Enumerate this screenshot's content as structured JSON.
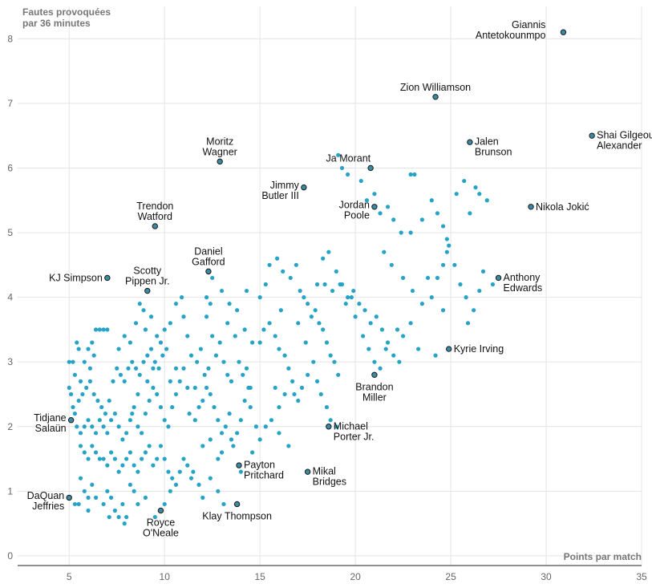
{
  "chart_data": {
    "type": "scatter",
    "ylabel_lines": [
      "Fautes provoquées",
      "par 36 minutes"
    ],
    "xlabel": "Points par match",
    "xlim": [
      2.3,
      35
    ],
    "ylim": [
      -0.15,
      8.5
    ],
    "xticks": [
      "5",
      "10",
      "15",
      "20",
      "25",
      "30",
      "35"
    ],
    "yticks": [
      "0",
      "1",
      "2",
      "3",
      "4",
      "5",
      "6",
      "7",
      "8"
    ],
    "colors": {
      "point": "#26a3c7",
      "highlight": "#3a8aa0",
      "grid": "#e4e4e4"
    },
    "highlighted": [
      {
        "name": [
          "Giannis",
          "Antetokounmpo"
        ],
        "x": 30.9,
        "y": 8.1,
        "anchor": "end",
        "pos": "above-left"
      },
      {
        "name": [
          "Zion Williamson"
        ],
        "x": 24.2,
        "y": 7.1,
        "anchor": "middle",
        "pos": "above"
      },
      {
        "name": [
          "Shai Gilgeous-",
          "Alexander"
        ],
        "x": 32.4,
        "y": 6.5,
        "anchor": "start",
        "pos": "right"
      },
      {
        "name": [
          "Jalen",
          "Brunson"
        ],
        "x": 26.0,
        "y": 6.4,
        "anchor": "start",
        "pos": "right"
      },
      {
        "name": [
          "Ja Morant"
        ],
        "x": 20.8,
        "y": 6.0,
        "anchor": "end",
        "pos": "left-up"
      },
      {
        "name": [
          "Moritz",
          "Wagner"
        ],
        "x": 12.9,
        "y": 6.1,
        "anchor": "middle",
        "pos": "above"
      },
      {
        "name": [
          "Jimmy",
          "Butler III"
        ],
        "x": 17.3,
        "y": 5.7,
        "anchor": "end",
        "pos": "left"
      },
      {
        "name": [
          "Jordan",
          "Poole"
        ],
        "x": 21.0,
        "y": 5.4,
        "anchor": "end",
        "pos": "left"
      },
      {
        "name": [
          "Nikola Jokić"
        ],
        "x": 29.2,
        "y": 5.4,
        "anchor": "start",
        "pos": "right"
      },
      {
        "name": [
          "Trendon",
          "Watford"
        ],
        "x": 9.5,
        "y": 5.1,
        "anchor": "middle",
        "pos": "above"
      },
      {
        "name": [
          "Daniel",
          "Gafford"
        ],
        "x": 12.3,
        "y": 4.4,
        "anchor": "middle",
        "pos": "above"
      },
      {
        "name": [
          "KJ Simpson"
        ],
        "x": 7.0,
        "y": 4.3,
        "anchor": "end",
        "pos": "left"
      },
      {
        "name": [
          "Scotty",
          "Pippen Jr."
        ],
        "x": 9.1,
        "y": 4.1,
        "anchor": "middle",
        "pos": "above"
      },
      {
        "name": [
          "Anthony",
          "Edwards"
        ],
        "x": 27.5,
        "y": 4.3,
        "anchor": "start",
        "pos": "right"
      },
      {
        "name": [
          "Kyrie Irving"
        ],
        "x": 24.9,
        "y": 3.2,
        "anchor": "start",
        "pos": "right"
      },
      {
        "name": [
          "Brandon",
          "Miller"
        ],
        "x": 21.0,
        "y": 2.8,
        "anchor": "middle",
        "pos": "below"
      },
      {
        "name": [
          "Tidjane",
          "Salaün"
        ],
        "x": 5.1,
        "y": 2.1,
        "anchor": "end",
        "pos": "left"
      },
      {
        "name": [
          "Michael",
          "Porter Jr."
        ],
        "x": 18.6,
        "y": 2.0,
        "anchor": "start",
        "pos": "right"
      },
      {
        "name": [
          "Payton",
          "Pritchard"
        ],
        "x": 13.9,
        "y": 1.4,
        "anchor": "start",
        "pos": "right"
      },
      {
        "name": [
          "Mikal",
          "Bridges"
        ],
        "x": 17.5,
        "y": 1.3,
        "anchor": "start",
        "pos": "right"
      },
      {
        "name": [
          "DaQuan",
          "Jeffries"
        ],
        "x": 5.0,
        "y": 0.9,
        "anchor": "end",
        "pos": "left"
      },
      {
        "name": [
          "Klay Thompson"
        ],
        "x": 13.8,
        "y": 0.8,
        "anchor": "middle",
        "pos": "below"
      },
      {
        "name": [
          "Royce",
          "O'Neale"
        ],
        "x": 9.8,
        "y": 0.7,
        "anchor": "middle",
        "pos": "below"
      }
    ],
    "points": [
      [
        5.0,
        3.0
      ],
      [
        5.2,
        3.0
      ],
      [
        5.4,
        3.3
      ],
      [
        5.5,
        3.2
      ],
      [
        5.3,
        2.8
      ],
      [
        5.6,
        2.7
      ],
      [
        5.8,
        3.0
      ],
      [
        6.0,
        3.2
      ],
      [
        6.2,
        3.3
      ],
      [
        6.4,
        3.5
      ],
      [
        6.6,
        3.5
      ],
      [
        6.8,
        3.5
      ],
      [
        7.0,
        3.5
      ],
      [
        6.3,
        3.1
      ],
      [
        6.1,
        2.9
      ],
      [
        5.0,
        2.6
      ],
      [
        5.1,
        2.5
      ],
      [
        5.2,
        2.3
      ],
      [
        5.3,
        2.2
      ],
      [
        5.5,
        2.4
      ],
      [
        5.7,
        2.5
      ],
      [
        5.9,
        2.6
      ],
      [
        6.1,
        2.7
      ],
      [
        6.3,
        2.5
      ],
      [
        6.5,
        2.4
      ],
      [
        6.7,
        2.3
      ],
      [
        6.9,
        2.2
      ],
      [
        7.1,
        2.4
      ],
      [
        7.3,
        2.7
      ],
      [
        7.5,
        2.9
      ],
      [
        7.7,
        2.8
      ],
      [
        7.9,
        2.7
      ],
      [
        8.1,
        2.9
      ],
      [
        8.3,
        3.0
      ],
      [
        8.5,
        2.9
      ],
      [
        8.7,
        2.8
      ],
      [
        8.9,
        3.0
      ],
      [
        9.1,
        3.1
      ],
      [
        9.3,
        3.2
      ],
      [
        9.5,
        3.0
      ],
      [
        9.7,
        2.9
      ],
      [
        9.9,
        3.1
      ],
      [
        10.1,
        3.2
      ],
      [
        7.6,
        3.2
      ],
      [
        7.9,
        3.4
      ],
      [
        8.2,
        3.3
      ],
      [
        8.5,
        3.6
      ],
      [
        8.7,
        3.9
      ],
      [
        8.9,
        3.8
      ],
      [
        9.0,
        3.5
      ],
      [
        9.3,
        3.7
      ],
      [
        9.6,
        3.4
      ],
      [
        9.8,
        3.3
      ],
      [
        10.0,
        3.5
      ],
      [
        10.3,
        3.6
      ],
      [
        10.6,
        3.9
      ],
      [
        10.9,
        4.0
      ],
      [
        11.0,
        3.7
      ],
      [
        11.2,
        3.4
      ],
      [
        11.4,
        3.1
      ],
      [
        5.4,
        2.0
      ],
      [
        5.6,
        1.9
      ],
      [
        5.8,
        2.0
      ],
      [
        6.0,
        2.1
      ],
      [
        6.2,
        2.0
      ],
      [
        6.4,
        1.9
      ],
      [
        6.6,
        2.1
      ],
      [
        6.8,
        2.0
      ],
      [
        7.0,
        1.9
      ],
      [
        7.2,
        2.1
      ],
      [
        7.4,
        2.2
      ],
      [
        7.6,
        2.0
      ],
      [
        7.8,
        1.8
      ],
      [
        8.0,
        1.9
      ],
      [
        8.2,
        2.1
      ],
      [
        8.4,
        2.3
      ],
      [
        8.6,
        2.0
      ],
      [
        8.8,
        1.9
      ],
      [
        9.0,
        2.2
      ],
      [
        9.2,
        2.4
      ],
      [
        9.4,
        2.6
      ],
      [
        9.6,
        2.5
      ],
      [
        9.8,
        2.3
      ],
      [
        10.0,
        2.1
      ],
      [
        10.2,
        2.0
      ],
      [
        10.4,
        2.3
      ],
      [
        10.6,
        2.5
      ],
      [
        10.8,
        2.7
      ],
      [
        11.0,
        2.9
      ],
      [
        11.2,
        2.6
      ],
      [
        5.6,
        1.7
      ],
      [
        5.8,
        1.6
      ],
      [
        6.0,
        1.5
      ],
      [
        6.2,
        1.7
      ],
      [
        6.4,
        1.6
      ],
      [
        6.6,
        1.5
      ],
      [
        6.8,
        1.5
      ],
      [
        7.0,
        1.4
      ],
      [
        7.2,
        1.6
      ],
      [
        7.4,
        1.5
      ],
      [
        7.6,
        1.3
      ],
      [
        7.8,
        1.4
      ],
      [
        8.0,
        1.5
      ],
      [
        8.2,
        1.6
      ],
      [
        8.4,
        1.4
      ],
      [
        8.6,
        1.3
      ],
      [
        8.8,
        1.5
      ],
      [
        9.0,
        1.6
      ],
      [
        9.2,
        1.7
      ],
      [
        9.4,
        1.4
      ],
      [
        9.6,
        1.5
      ],
      [
        9.8,
        1.7
      ],
      [
        10.0,
        1.5
      ],
      [
        10.2,
        1.3
      ],
      [
        10.4,
        1.2
      ],
      [
        10.6,
        1.1
      ],
      [
        10.8,
        1.3
      ],
      [
        11.0,
        1.5
      ],
      [
        11.2,
        1.4
      ],
      [
        11.4,
        1.2
      ],
      [
        5.6,
        1.2
      ],
      [
        5.8,
        1.0
      ],
      [
        6.0,
        0.9
      ],
      [
        6.2,
        1.1
      ],
      [
        7.0,
        1.0
      ],
      [
        7.2,
        0.9
      ],
      [
        7.4,
        0.7
      ],
      [
        7.6,
        0.6
      ],
      [
        7.8,
        0.8
      ],
      [
        8.0,
        0.6
      ],
      [
        8.2,
        1.1
      ],
      [
        8.4,
        1.0
      ],
      [
        8.6,
        0.8
      ],
      [
        9.0,
        0.9
      ],
      [
        10.0,
        0.8
      ],
      [
        10.3,
        1.0
      ],
      [
        11.5,
        1.3
      ],
      [
        11.8,
        1.1
      ],
      [
        12.0,
        0.9
      ],
      [
        12.4,
        1.2
      ],
      [
        12.8,
        1.0
      ],
      [
        13.1,
        0.8
      ],
      [
        5.3,
        0.8
      ],
      [
        5.5,
        0.8
      ],
      [
        6.0,
        0.7
      ],
      [
        6.4,
        0.9
      ],
      [
        6.8,
        0.8
      ],
      [
        7.1,
        0.6
      ],
      [
        7.9,
        0.5
      ],
      [
        9.5,
        0.6
      ],
      [
        11.6,
        2.1
      ],
      [
        11.8,
        2.3
      ],
      [
        12.0,
        2.4
      ],
      [
        12.2,
        2.6
      ],
      [
        12.4,
        2.5
      ],
      [
        12.6,
        2.3
      ],
      [
        12.8,
        2.1
      ],
      [
        13.0,
        1.9
      ],
      [
        13.2,
        2.0
      ],
      [
        13.4,
        2.2
      ],
      [
        13.6,
        1.7
      ],
      [
        13.8,
        1.9
      ],
      [
        14.0,
        2.1
      ],
      [
        14.2,
        2.4
      ],
      [
        14.4,
        2.6
      ],
      [
        11.7,
        3.0
      ],
      [
        11.9,
        3.2
      ],
      [
        12.1,
        2.8
      ],
      [
        12.3,
        2.9
      ],
      [
        12.5,
        3.4
      ],
      [
        12.7,
        3.1
      ],
      [
        12.9,
        3.3
      ],
      [
        13.1,
        3.0
      ],
      [
        13.3,
        2.8
      ],
      [
        13.5,
        2.7
      ],
      [
        13.7,
        3.4
      ],
      [
        13.9,
        3.0
      ],
      [
        14.1,
        2.8
      ],
      [
        14.3,
        2.9
      ],
      [
        14.5,
        2.6
      ],
      [
        12.0,
        1.7
      ],
      [
        12.4,
        1.8
      ],
      [
        12.8,
        1.5
      ],
      [
        13.0,
        1.6
      ],
      [
        13.5,
        1.8
      ],
      [
        14.0,
        1.3
      ],
      [
        14.6,
        1.6
      ],
      [
        15.0,
        1.8
      ],
      [
        15.3,
        2.0
      ],
      [
        15.6,
        2.1
      ],
      [
        16.0,
        1.9
      ],
      [
        16.5,
        1.7
      ],
      [
        12.2,
        4.0
      ],
      [
        12.5,
        4.3
      ],
      [
        13.0,
        4.1
      ],
      [
        13.4,
        3.9
      ],
      [
        13.8,
        3.8
      ],
      [
        14.2,
        3.5
      ],
      [
        14.6,
        3.3
      ],
      [
        15.0,
        3.3
      ],
      [
        15.2,
        3.5
      ],
      [
        15.5,
        3.6
      ],
      [
        15.8,
        3.4
      ],
      [
        16.0,
        3.2
      ],
      [
        16.3,
        3.1
      ],
      [
        16.5,
        2.9
      ],
      [
        16.7,
        2.7
      ],
      [
        15.0,
        4.0
      ],
      [
        15.3,
        4.2
      ],
      [
        15.5,
        4.5
      ],
      [
        15.9,
        4.6
      ],
      [
        16.2,
        4.4
      ],
      [
        16.6,
        4.3
      ],
      [
        16.9,
        4.5
      ],
      [
        17.1,
        4.1
      ],
      [
        17.3,
        4.0
      ],
      [
        17.5,
        3.9
      ],
      [
        17.7,
        3.7
      ],
      [
        17.9,
        3.8
      ],
      [
        18.1,
        3.6
      ],
      [
        18.3,
        3.5
      ],
      [
        18.5,
        3.3
      ],
      [
        18.7,
        3.1
      ],
      [
        18.9,
        3.0
      ],
      [
        19.1,
        2.8
      ],
      [
        16.8,
        2.5
      ],
      [
        17.0,
        2.4
      ],
      [
        17.2,
        2.6
      ],
      [
        17.5,
        2.8
      ],
      [
        17.8,
        3.0
      ],
      [
        18.0,
        2.7
      ],
      [
        18.2,
        2.5
      ],
      [
        18.5,
        2.3
      ],
      [
        18.7,
        2.1
      ],
      [
        19.0,
        2.0
      ],
      [
        15.8,
        2.6
      ],
      [
        16.0,
        2.3
      ],
      [
        16.3,
        2.5
      ],
      [
        14.5,
        2.3
      ],
      [
        14.8,
        2.0
      ],
      [
        18.0,
        4.2
      ],
      [
        18.3,
        4.6
      ],
      [
        18.6,
        4.7
      ],
      [
        19.0,
        4.4
      ],
      [
        19.3,
        4.2
      ],
      [
        19.6,
        4.0
      ],
      [
        19.9,
        4.1
      ],
      [
        20.2,
        3.9
      ],
      [
        20.5,
        3.8
      ],
      [
        20.8,
        3.6
      ],
      [
        21.1,
        3.7
      ],
      [
        21.4,
        3.5
      ],
      [
        21.7,
        3.3
      ],
      [
        22.0,
        3.1
      ],
      [
        22.3,
        3.0
      ],
      [
        18.4,
        4.2
      ],
      [
        18.8,
        4.1
      ],
      [
        19.2,
        4.2
      ],
      [
        19.5,
        3.9
      ],
      [
        19.8,
        4.0
      ],
      [
        20.0,
        3.7
      ],
      [
        20.4,
        3.4
      ],
      [
        20.7,
        3.2
      ],
      [
        21.0,
        3.0
      ],
      [
        21.3,
        2.9
      ],
      [
        21.6,
        3.2
      ],
      [
        22.2,
        3.5
      ],
      [
        22.5,
        3.4
      ],
      [
        22.9,
        3.6
      ],
      [
        23.3,
        3.2
      ],
      [
        21.5,
        4.7
      ],
      [
        21.9,
        4.5
      ],
      [
        22.5,
        4.3
      ],
      [
        23.0,
        4.1
      ],
      [
        23.5,
        3.9
      ],
      [
        24.0,
        4.0
      ],
      [
        24.3,
        4.3
      ],
      [
        24.6,
        4.5
      ],
      [
        24.8,
        4.7
      ],
      [
        24.9,
        4.8
      ],
      [
        25.2,
        4.5
      ],
      [
        25.5,
        4.2
      ],
      [
        25.8,
        4.0
      ],
      [
        26.2,
        3.8
      ],
      [
        26.5,
        4.1
      ],
      [
        22.9,
        5.0
      ],
      [
        23.5,
        5.2
      ],
      [
        24.0,
        5.5
      ],
      [
        24.3,
        5.3
      ],
      [
        24.6,
        5.1
      ],
      [
        24.8,
        4.9
      ],
      [
        25.3,
        5.6
      ],
      [
        25.7,
        5.8
      ],
      [
        26.0,
        5.3
      ],
      [
        26.3,
        5.7
      ],
      [
        26.5,
        5.6
      ],
      [
        26.9,
        5.5
      ],
      [
        22.9,
        5.9
      ],
      [
        23.1,
        5.9
      ],
      [
        24.2,
        3.1
      ],
      [
        19.1,
        6.2
      ],
      [
        19.3,
        6.0
      ],
      [
        19.6,
        5.9
      ],
      [
        20.3,
        5.8
      ],
      [
        20.6,
        5.5
      ],
      [
        21.0,
        5.6
      ],
      [
        21.3,
        5.3
      ],
      [
        21.7,
        5.4
      ],
      [
        22.0,
        5.2
      ],
      [
        22.4,
        5.0
      ],
      [
        23.8,
        4.3
      ],
      [
        24.6,
        3.8
      ],
      [
        25.9,
        3.6
      ],
      [
        26.7,
        4.4
      ],
      [
        27.2,
        4.2
      ],
      [
        8.3,
        2.2
      ],
      [
        8.6,
        2.5
      ],
      [
        9.1,
        2.7
      ],
      [
        9.4,
        2.9
      ],
      [
        10.3,
        2.7
      ],
      [
        10.6,
        2.9
      ],
      [
        11.3,
        2.2
      ],
      [
        11.6,
        2.6
      ],
      [
        12.2,
        3.7
      ],
      [
        12.4,
        3.9
      ],
      [
        13.3,
        3.6
      ],
      [
        14.3,
        4.1
      ],
      [
        16.1,
        3.8
      ],
      [
        17.0,
        3.6
      ],
      [
        17.4,
        3.3
      ]
    ]
  }
}
